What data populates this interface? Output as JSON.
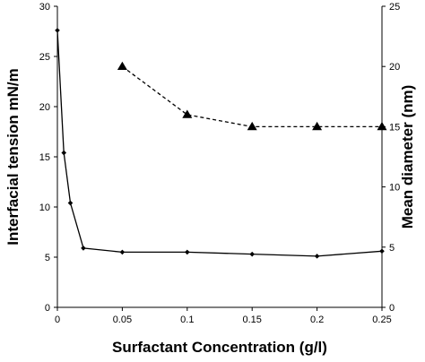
{
  "chart_data": {
    "type": "line",
    "title": "",
    "xlabel": "Surfactant Concentration (g/l)",
    "ylabel": "Interfacial tension mN/m",
    "y2label": "Mean diameter (nm)",
    "xlim": [
      0,
      0.25
    ],
    "ylim": [
      0,
      30
    ],
    "y2lim": [
      0,
      25
    ],
    "xticks": [
      "0",
      "0.05",
      "0.1",
      "0.15",
      "0.2",
      "0.25"
    ],
    "yticks": [
      "0",
      "5",
      "10",
      "15",
      "20",
      "25",
      "30"
    ],
    "y2ticks": [
      "0",
      "5",
      "10",
      "15",
      "20",
      "25"
    ],
    "grid": false,
    "legend": "none",
    "series": [
      {
        "axis": "left",
        "style": "solid",
        "marker": "diamond",
        "color": "#000000",
        "x": [
          0,
          0.005,
          0.01,
          0.02,
          0.05,
          0.1,
          0.15,
          0.2,
          0.25
        ],
        "y": [
          27.6,
          15.4,
          10.4,
          5.9,
          5.5,
          5.5,
          5.3,
          5.1,
          5.6
        ]
      },
      {
        "axis": "right",
        "style": "dashed",
        "marker": "triangle",
        "color": "#000000",
        "x": [
          0.05,
          0.1,
          0.15,
          0.2,
          0.25
        ],
        "y": [
          20,
          16,
          15,
          15,
          15
        ]
      }
    ]
  }
}
